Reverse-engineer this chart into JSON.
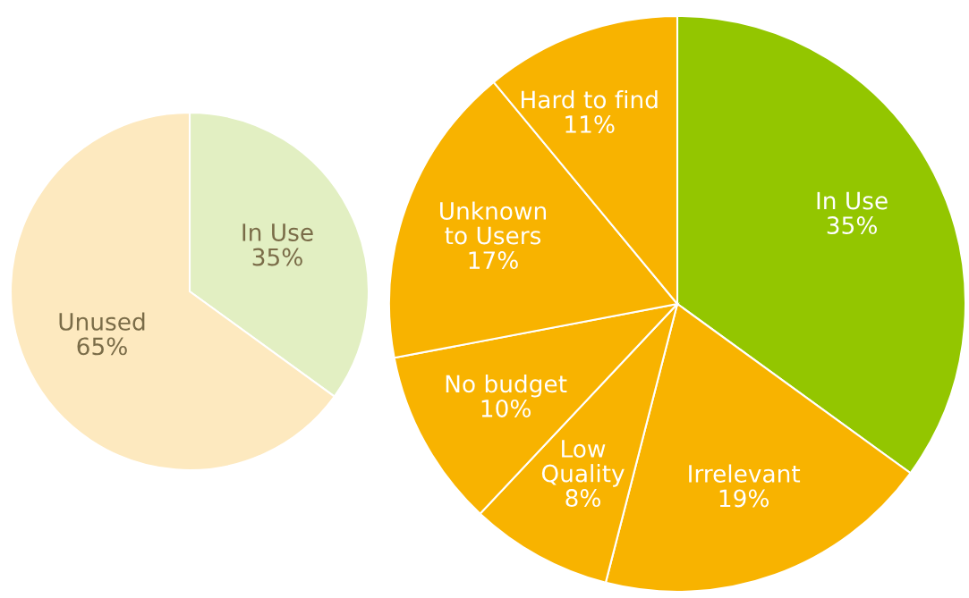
{
  "chart_data": [
    {
      "type": "pie",
      "categories": [
        "In Use",
        "Unused"
      ],
      "values": [
        35,
        65
      ],
      "value_labels": [
        "35%",
        "65%"
      ],
      "colors": [
        "#e2efc2",
        "#fde9bf"
      ]
    },
    {
      "type": "pie",
      "categories": [
        "In Use",
        "Irrelevant",
        "Low\nQuality",
        "No budget",
        "Unknown\nto Users",
        "Hard to find"
      ],
      "values": [
        35,
        19,
        8,
        10,
        17,
        11
      ],
      "value_labels": [
        "35%",
        "19%",
        "8%",
        "10%",
        "17%",
        "11%"
      ],
      "colors": [
        "#93c600",
        "#f8b300",
        "#f8b300",
        "#f8b300",
        "#f8b300",
        "#f8b300"
      ]
    }
  ]
}
